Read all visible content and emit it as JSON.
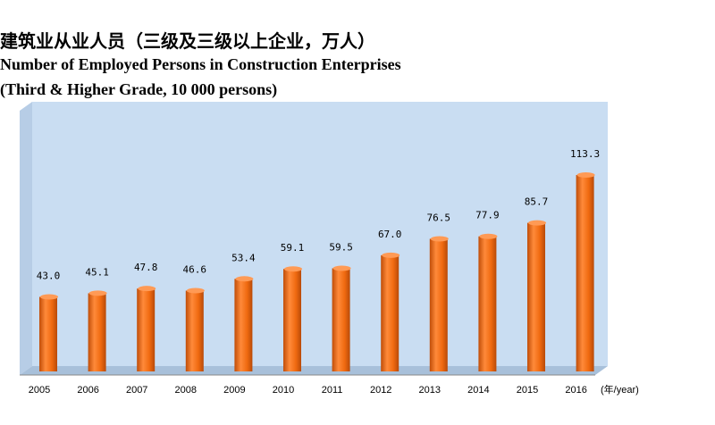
{
  "title_cn": "建筑业从业人员（三级及三级以上企业，万人）",
  "title_en_line1": "Number of Employed Persons in Construction Enterprises",
  "title_en_line2": "(Third & Higher Grade, 10 000 persons)",
  "colors": {
    "bar": "#f06a10",
    "bar_dark": "#b84a08",
    "bar_light": "#ff9a55",
    "plot_bg": "#c9ddf2",
    "floor": "#a8c0da"
  },
  "chart_data": {
    "type": "bar",
    "categories": [
      "2005",
      "2006",
      "2007",
      "2008",
      "2009",
      "2010",
      "2011",
      "2012",
      "2013",
      "2014",
      "2015",
      "2016"
    ],
    "values": [
      43.0,
      45.1,
      47.8,
      46.6,
      53.4,
      59.1,
      59.5,
      67.0,
      76.5,
      77.9,
      85.7,
      113.3
    ],
    "value_labels": [
      "43.0",
      "45.1",
      "47.8",
      "46.6",
      "53.4",
      "59.1",
      "59.5",
      "67.0",
      "76.5",
      "77.9",
      "85.7",
      "113.3"
    ],
    "xlabel": "(年/year)",
    "ylabel": "",
    "ylim": [
      0,
      120
    ],
    "grid": false
  }
}
